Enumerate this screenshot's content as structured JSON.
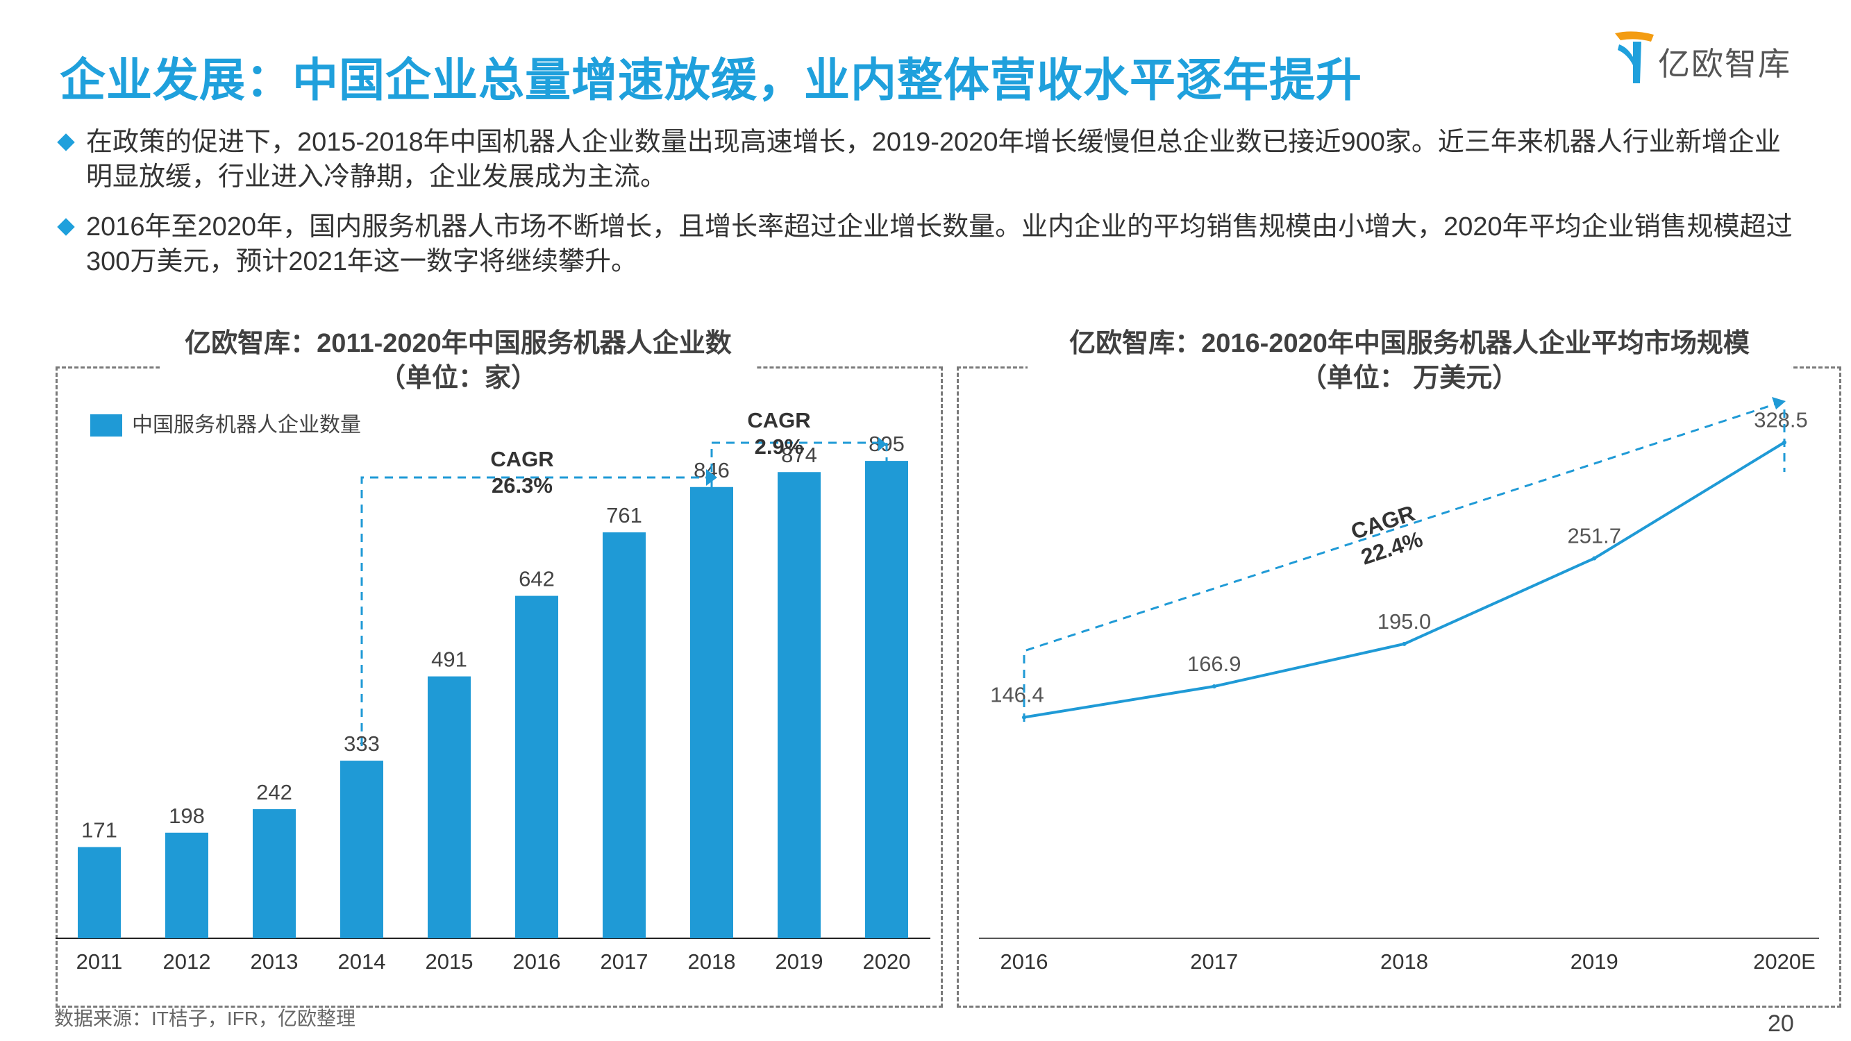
{
  "header": {
    "title": "企业发展：中国企业总量增速放缓，业内整体营收水平逐年提升",
    "logo_text": "亿欧智库"
  },
  "bullets": [
    "在政策的促进下，2015-2018年中国机器人企业数量出现高速增长，2019-2020年增长缓慢但总企业数已接近900家。近三年来机器人行业新增企业明显放缓，行业进入冷静期，企业发展成为主流。",
    "2016年至2020年，国内服务机器人市场不断增长，且增长率超过企业增长数量。业内企业的平均销售规模由小增大，2020年平均企业销售规模超过300万美元，预计2021年这一数字将继续攀升。"
  ],
  "colors": {
    "accent": "#1fa0dc",
    "bar": "#1f9ad6",
    "line": "#1f9ad6",
    "text": "#333333"
  },
  "chart_data": [
    {
      "type": "bar",
      "title": "亿欧智库：2011-2020年中国服务机器人企业数",
      "subtitle": "（单位：家）",
      "categories": [
        "2011",
        "2012",
        "2013",
        "2014",
        "2015",
        "2016",
        "2017",
        "2018",
        "2019",
        "2020"
      ],
      "series": [
        {
          "name": "中国服务机器人企业数量",
          "values": [
            171,
            198,
            242,
            333,
            491,
            642,
            761,
            846,
            874,
            895
          ]
        }
      ],
      "ylim": [
        0,
        1000
      ],
      "grid": false,
      "legend": "top-left",
      "annotations": [
        {
          "label": "CAGR",
          "value": "26.3%",
          "from": "2014",
          "to": "2018"
        },
        {
          "label": "CAGR",
          "value": "2.9%",
          "from": "2018",
          "to": "2020"
        }
      ]
    },
    {
      "type": "line",
      "title": "亿欧智库：2016-2020年中国服务机器人企业平均市场规模",
      "subtitle": "（单位： 万美元）",
      "categories": [
        "2016",
        "2017",
        "2018",
        "2019",
        "2020E"
      ],
      "series": [
        {
          "name": "",
          "values": [
            146.4,
            166.9,
            195.0,
            251.7,
            328.5
          ]
        }
      ],
      "value_labels": [
        "146.4",
        "166.9",
        "195.0",
        "251.7",
        "328.5"
      ],
      "ylim": [
        0,
        400
      ],
      "grid": false,
      "legend": "none",
      "annotations": [
        {
          "label": "CAGR",
          "value": "22.4%",
          "from": "2016",
          "to": "2020E"
        }
      ]
    }
  ],
  "footer": {
    "source": "数据来源：IT桔子，IFR，亿欧整理",
    "page_number": "20"
  }
}
